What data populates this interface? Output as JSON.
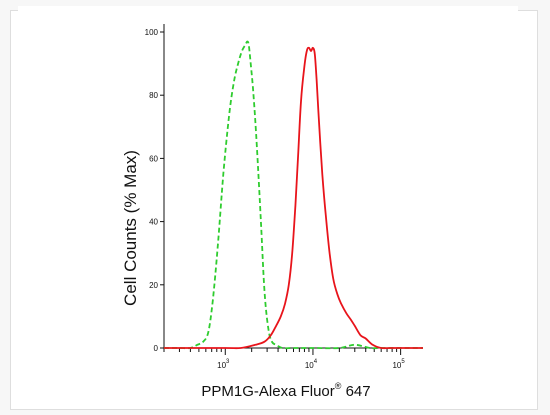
{
  "chart_data": {
    "type": "line",
    "xlabel": "PPM1G-Alexa Fluor",
    "xlabel_sup": "®",
    "xlabel_tail": " 647",
    "ylabel": "Cell Counts (% Max)",
    "x_scale": "log",
    "xlim": [
      200,
      180000
    ],
    "ylim": [
      0,
      100
    ],
    "yticks": [
      0,
      20,
      40,
      60,
      80,
      100
    ],
    "xticks": [
      {
        "value": 1000,
        "base": "10",
        "exp": "3"
      },
      {
        "value": 10000,
        "base": "10",
        "exp": "4"
      },
      {
        "value": 100000,
        "base": "10",
        "exp": "5"
      }
    ],
    "grid": false,
    "series": [
      {
        "color": "#2ecc2e",
        "style": "dashed",
        "x": [
          200,
          300,
          400,
          480,
          560,
          640,
          720,
          820,
          950,
          1100,
          1250,
          1400,
          1550,
          1700,
          1780,
          1850,
          1950,
          2100,
          2300,
          2550,
          2800,
          3100,
          3400,
          3800,
          4500,
          6000,
          10000,
          20000,
          30000,
          45000,
          60000,
          180000
        ],
        "y": [
          0,
          0,
          0,
          1,
          2,
          5,
          15,
          32,
          55,
          73,
          84,
          90,
          94,
          96,
          97,
          96,
          90,
          80,
          63,
          40,
          18,
          6,
          2,
          1,
          0,
          0,
          0,
          0,
          1,
          0,
          0,
          0
        ]
      },
      {
        "color": "#e8141b",
        "style": "solid",
        "x": [
          200,
          300,
          1000,
          1500,
          2200,
          2800,
          3300,
          3800,
          4300,
          4800,
          5300,
          5800,
          6300,
          6800,
          7300,
          7900,
          8500,
          9000,
          9500,
          10000,
          10500,
          11000,
          11800,
          12800,
          14000,
          15500,
          17000,
          19000,
          21000,
          24000,
          27000,
          30000,
          35000,
          40000,
          48000,
          60000,
          80000,
          180000
        ],
        "y": [
          0,
          0,
          0,
          0,
          1,
          2,
          4,
          7,
          10,
          14,
          20,
          30,
          45,
          62,
          78,
          88,
          94,
          95,
          94,
          95,
          93,
          85,
          70,
          55,
          42,
          30,
          22,
          17,
          14,
          11,
          9,
          7,
          4,
          3,
          1,
          0,
          0,
          0
        ]
      }
    ]
  }
}
